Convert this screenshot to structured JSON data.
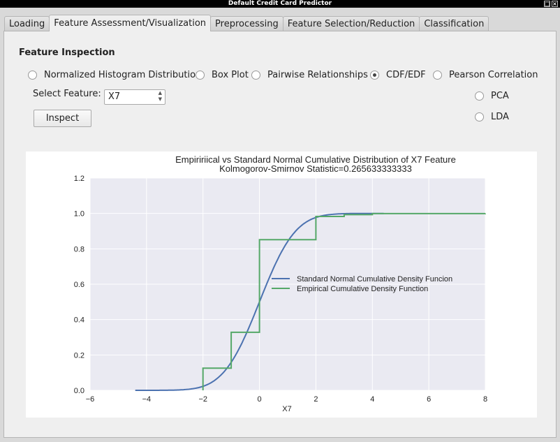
{
  "window": {
    "title": "Default Credit Card Predictor"
  },
  "tabs": [
    {
      "label": "Loading",
      "active": false
    },
    {
      "label": "Feature Assessment/Visualization",
      "active": true
    },
    {
      "label": "Preprocessing",
      "active": false
    },
    {
      "label": "Feature Selection/Reduction",
      "active": false
    },
    {
      "label": "Classification",
      "active": false
    }
  ],
  "inspection": {
    "title": "Feature Inspection",
    "options": [
      {
        "label": "Normalized Histogram Distribution",
        "checked": false
      },
      {
        "label": "Box Plot",
        "checked": false
      },
      {
        "label": "Pairwise Relationships",
        "checked": false
      },
      {
        "label": "CDF/EDF",
        "checked": true
      },
      {
        "label": "Pearson Correlation",
        "checked": false
      },
      {
        "label": "PCA",
        "checked": false
      },
      {
        "label": "LDA",
        "checked": false
      }
    ],
    "select_label": "Select Feature:",
    "selected_feature": "X7",
    "inspect_button": "Inspect"
  },
  "chart_data": {
    "type": "line",
    "title": "Empiririical vs Standard Normal Cumulative Distribution of X7 Feature",
    "subtitle": "Kolmogorov-Smirnov Statistic=0.265633333333",
    "xlabel": "X7",
    "ylabel": "",
    "xlim": [
      -6,
      8
    ],
    "ylim": [
      0,
      1.2
    ],
    "xticks": [
      -6,
      -4,
      -2,
      0,
      2,
      4,
      6,
      8
    ],
    "xtick_labels": [
      "−6",
      "−4",
      "−2",
      "0",
      "2",
      "4",
      "6",
      "8"
    ],
    "yticks": [
      0.0,
      0.2,
      0.4,
      0.6,
      0.8,
      1.0,
      1.2
    ],
    "ytick_labels": [
      "0.0",
      "0.2",
      "0.4",
      "0.6",
      "0.8",
      "1.0",
      "1.2"
    ],
    "grid": true,
    "legend_position": "center-right",
    "series": [
      {
        "name": "Standard Normal Cumulative Density Funcion",
        "color": "#4c72b0",
        "kind": "normal_cdf",
        "x_range": [
          -4.4,
          4.4
        ]
      },
      {
        "name": "Empirical Cumulative Density Function",
        "color": "#55a868",
        "kind": "step",
        "x": [
          -2,
          -1,
          0,
          2,
          3,
          4,
          8
        ],
        "y": [
          0.125,
          0.328,
          0.852,
          0.983,
          0.993,
          0.999,
          1.0
        ]
      }
    ]
  },
  "colors": {
    "plot_background": "#eaeaf2",
    "grid": "#ffffff"
  }
}
